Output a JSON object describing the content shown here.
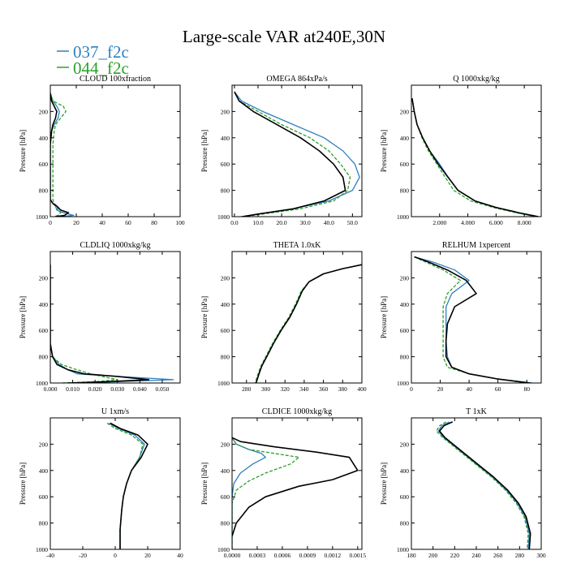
{
  "title": "Large-scale VAR at240E,30N",
  "legend": [
    {
      "label": "037_f2c",
      "color": "#2f7fc1",
      "style": "solid"
    },
    {
      "label": "044_f2c",
      "color": "#2ca02c",
      "style": "dashed"
    }
  ],
  "colors": {
    "series3": "#000000"
  },
  "chart_data": [
    {
      "type": "line",
      "title": "CLOUD  100xfraction",
      "ylabel": "Pressure [hPa]",
      "xlim": [
        0,
        100
      ],
      "ylim": [
        1000,
        0
      ],
      "xticks": [
        "0",
        "20",
        "40",
        "60",
        "80",
        "100"
      ],
      "yticks": [
        "200",
        "400",
        "600",
        "800",
        "1000"
      ],
      "series": [
        {
          "x": [
            0,
            2,
            5,
            7,
            6,
            3,
            1,
            0,
            0,
            0,
            0,
            2,
            4,
            5,
            10,
            18,
            8,
            2
          ],
          "y": [
            60,
            120,
            160,
            200,
            250,
            300,
            350,
            450,
            600,
            800,
            870,
            900,
            920,
            950,
            970,
            990,
            1000,
            1010
          ]
        },
        {
          "x": [
            0,
            2,
            10,
            12,
            8,
            4,
            3,
            2,
            2,
            2,
            2,
            3,
            5,
            6,
            8,
            6,
            3,
            2
          ],
          "y": [
            60,
            120,
            160,
            200,
            250,
            300,
            350,
            450,
            600,
            800,
            870,
            900,
            920,
            950,
            970,
            990,
            1000,
            1010
          ]
        },
        {
          "x": [
            0,
            1,
            3,
            5,
            4,
            2,
            1,
            0,
            0,
            0,
            0,
            2,
            5,
            8,
            14,
            11,
            4,
            2
          ],
          "y": [
            60,
            120,
            160,
            200,
            250,
            300,
            350,
            450,
            600,
            800,
            870,
            900,
            920,
            950,
            970,
            990,
            1000,
            1010
          ]
        }
      ]
    },
    {
      "type": "line",
      "title": "OMEGA  864xPa/s",
      "ylabel": "Pressure [hPa]",
      "xlim": [
        -1,
        54
      ],
      "ylim": [
        1000,
        0
      ],
      "xticks": [
        "0.0",
        "10.0",
        "20.0",
        "30.0",
        "40.0",
        "50.0"
      ],
      "yticks": [
        "200",
        "400",
        "600",
        "800",
        "1000"
      ],
      "series": [
        {
          "x": [
            0,
            3,
            12,
            25,
            38,
            46,
            51,
            53,
            50,
            40,
            25,
            10,
            0
          ],
          "y": [
            50,
            120,
            200,
            300,
            400,
            500,
            600,
            700,
            800,
            880,
            940,
            980,
            1010
          ]
        },
        {
          "x": [
            0,
            2,
            10,
            20,
            32,
            40,
            45,
            49,
            48,
            42,
            28,
            12,
            0
          ],
          "y": [
            50,
            120,
            200,
            300,
            400,
            500,
            600,
            700,
            800,
            880,
            940,
            980,
            1010
          ]
        },
        {
          "x": [
            0,
            2,
            8,
            18,
            28,
            36,
            42,
            46,
            47,
            38,
            25,
            10,
            0
          ],
          "y": [
            50,
            120,
            200,
            300,
            400,
            500,
            600,
            700,
            800,
            880,
            940,
            980,
            1010
          ]
        }
      ]
    },
    {
      "type": "line",
      "title": "Q  1000xkg/kg",
      "ylabel": "Pressure [hPa]",
      "xlim": [
        0,
        9.2
      ],
      "ylim": [
        1000,
        0
      ],
      "xticks": [
        "2.000",
        "4.000",
        "6.000",
        "8.000"
      ],
      "yticks": [
        "200",
        "400",
        "600",
        "800",
        "1000"
      ],
      "series": [
        {
          "x": [
            0.05,
            0.2,
            0.4,
            0.8,
            1.3,
            2.0,
            2.6,
            3.3,
            4.5,
            6.0,
            7.5,
            8.8
          ],
          "y": [
            100,
            200,
            300,
            400,
            500,
            600,
            700,
            800,
            880,
            930,
            970,
            1000
          ]
        },
        {
          "x": [
            0.05,
            0.2,
            0.4,
            0.75,
            1.2,
            1.8,
            2.4,
            3.0,
            4.2,
            5.8,
            7.4,
            8.8
          ],
          "y": [
            100,
            200,
            300,
            400,
            500,
            600,
            700,
            800,
            880,
            930,
            970,
            1000
          ]
        },
        {
          "x": [
            0.05,
            0.2,
            0.4,
            0.8,
            1.3,
            1.9,
            2.6,
            3.3,
            4.5,
            6.0,
            7.6,
            9.0
          ],
          "y": [
            100,
            200,
            300,
            400,
            500,
            600,
            700,
            800,
            880,
            930,
            970,
            1000
          ]
        }
      ]
    },
    {
      "type": "line",
      "title": "CLDLIQ  1000xkg/kg",
      "ylabel": "Pressure [hPa]",
      "xlim": [
        0,
        0.058
      ],
      "ylim": [
        1000,
        0
      ],
      "xticks": [
        "0.000",
        "0.010",
        "0.020",
        "0.030",
        "0.040",
        "0.050"
      ],
      "yticks": [
        "200",
        "400",
        "600",
        "800",
        "1000"
      ],
      "series": [
        {
          "x": [
            0,
            0,
            0,
            0.001,
            0.004,
            0.008,
            0.012,
            0.03,
            0.055,
            0.03,
            0.01,
            0.002
          ],
          "y": [
            100,
            400,
            700,
            800,
            860,
            900,
            930,
            950,
            975,
            990,
            1000,
            1010
          ]
        },
        {
          "x": [
            0,
            0,
            0,
            0.001,
            0.005,
            0.012,
            0.018,
            0.023,
            0.03,
            0.02,
            0.005,
            0.001
          ],
          "y": [
            100,
            400,
            700,
            800,
            860,
            900,
            930,
            950,
            975,
            990,
            1000,
            1010
          ]
        },
        {
          "x": [
            0,
            0,
            0,
            0.001,
            0.003,
            0.008,
            0.015,
            0.03,
            0.044,
            0.025,
            0.008,
            0.002
          ],
          "y": [
            100,
            400,
            700,
            800,
            860,
            900,
            930,
            950,
            975,
            990,
            1000,
            1010
          ]
        }
      ]
    },
    {
      "type": "line",
      "title": "THETA  1.0xK",
      "ylabel": "Pressure [hPa]",
      "xlim": [
        265,
        400
      ],
      "ylim": [
        1000,
        0
      ],
      "xticks": [
        "280",
        "300",
        "320",
        "340",
        "360",
        "380",
        "400"
      ],
      "yticks": [
        "200",
        "400",
        "600",
        "800",
        "1000"
      ],
      "series": [
        {
          "x": [
            400,
            380,
            360,
            345,
            338,
            332,
            325,
            316,
            308,
            301,
            296,
            293,
            290
          ],
          "y": [
            100,
            130,
            170,
            230,
            300,
            400,
            500,
            600,
            700,
            800,
            870,
            930,
            1000
          ]
        },
        {
          "x": [
            400,
            380,
            360,
            345,
            337,
            331,
            324,
            315,
            307,
            300,
            295,
            292,
            289
          ],
          "y": [
            100,
            130,
            170,
            230,
            300,
            400,
            500,
            600,
            700,
            800,
            870,
            930,
            1000
          ]
        },
        {
          "x": [
            400,
            380,
            360,
            345,
            338,
            332,
            325,
            316,
            308,
            301,
            296,
            293,
            290
          ],
          "y": [
            100,
            130,
            170,
            230,
            300,
            400,
            500,
            600,
            700,
            800,
            870,
            930,
            1000
          ]
        }
      ]
    },
    {
      "type": "line",
      "title": "RELHUM  1xpercent",
      "ylabel": "Pressure [hPa]",
      "xlim": [
        0,
        90
      ],
      "ylim": [
        1000,
        0
      ],
      "xticks": [
        "0",
        "20",
        "40",
        "60",
        "80"
      ],
      "yticks": [
        "200",
        "400",
        "600",
        "800",
        "1000"
      ],
      "series": [
        {
          "x": [
            2,
            15,
            30,
            40,
            28,
            24,
            24,
            24,
            25,
            28,
            40,
            60,
            84
          ],
          "y": [
            40,
            80,
            140,
            220,
            320,
            420,
            550,
            680,
            800,
            880,
            930,
            970,
            1000
          ]
        },
        {
          "x": [
            2,
            10,
            22,
            34,
            25,
            22,
            22,
            22,
            22,
            25,
            40,
            60,
            80
          ],
          "y": [
            40,
            80,
            140,
            220,
            320,
            420,
            550,
            680,
            800,
            880,
            930,
            970,
            1000
          ]
        },
        {
          "x": [
            2,
            12,
            25,
            38,
            45,
            30,
            25,
            24,
            24,
            28,
            40,
            60,
            82
          ],
          "y": [
            40,
            80,
            140,
            220,
            320,
            420,
            550,
            680,
            800,
            880,
            930,
            970,
            1000
          ]
        }
      ]
    },
    {
      "type": "line",
      "title": "U  1xm/s",
      "ylabel": "Pressure [hPa]",
      "xlim": [
        -40,
        40
      ],
      "ylim": [
        1000,
        0
      ],
      "xticks": [
        "-40",
        "-20",
        "0",
        "20",
        "40"
      ],
      "yticks": [
        "200",
        "400",
        "600",
        "800",
        "1000"
      ],
      "series": [
        {
          "x": [
            -4,
            2,
            12,
            18,
            15,
            10,
            7,
            5,
            4,
            3,
            3
          ],
          "y": [
            40,
            80,
            130,
            200,
            300,
            400,
            500,
            600,
            700,
            850,
            1000
          ]
        },
        {
          "x": [
            -5,
            0,
            10,
            17,
            15,
            10,
            7,
            5,
            4,
            3,
            3
          ],
          "y": [
            40,
            80,
            130,
            200,
            300,
            400,
            500,
            600,
            700,
            850,
            1000
          ]
        },
        {
          "x": [
            -3,
            3,
            14,
            20,
            16,
            10,
            7,
            5,
            4,
            3,
            3
          ],
          "y": [
            40,
            80,
            130,
            200,
            300,
            400,
            500,
            600,
            700,
            850,
            1000
          ]
        }
      ]
    },
    {
      "type": "line",
      "title": "CLDICE  1000xkg/kg",
      "ylabel": "Pressure [hPa]",
      "xlim": [
        0,
        0.00155
      ],
      "ylim": [
        1000,
        0
      ],
      "xticks": [
        "0.0000",
        "0.0003",
        "0.0006",
        "0.0009",
        "0.0012",
        "0.0015"
      ],
      "yticks": [
        "200",
        "400",
        "600",
        "800",
        "1000"
      ],
      "series": [
        {
          "x": [
            0,
            5e-05,
            0.0002,
            0.00035,
            0.0004,
            0.00025,
            0.0001,
            2e-05,
            0,
            0
          ],
          "y": [
            150,
            200,
            240,
            270,
            300,
            350,
            420,
            500,
            600,
            1000
          ]
        },
        {
          "x": [
            0,
            5e-05,
            0.0002,
            0.0005,
            0.0008,
            0.0007,
            0.0004,
            0.0002,
            5e-05,
            0,
            0
          ],
          "y": [
            150,
            200,
            240,
            270,
            300,
            350,
            420,
            480,
            550,
            650,
            1000
          ]
        },
        {
          "x": [
            0,
            0.0001,
            0.0005,
            0.001,
            0.0014,
            0.0015,
            0.0012,
            0.0008,
            0.0004,
            0.0002,
            5e-05,
            0
          ],
          "y": [
            150,
            180,
            220,
            260,
            300,
            400,
            470,
            520,
            600,
            680,
            800,
            900
          ]
        }
      ]
    },
    {
      "type": "line",
      "title": "T  1xK",
      "ylabel": "Pressure [hPa]",
      "xlim": [
        180,
        300
      ],
      "ylim": [
        1000,
        0
      ],
      "xticks": [
        "180",
        "200",
        "220",
        "240",
        "260",
        "280",
        "300"
      ],
      "yticks": [
        "200",
        "400",
        "600",
        "800",
        "1000"
      ],
      "series": [
        {
          "x": [
            215,
            208,
            205,
            210,
            225,
            240,
            255,
            268,
            278,
            285,
            289,
            288
          ],
          "y": [
            30,
            60,
            100,
            150,
            250,
            350,
            450,
            550,
            650,
            750,
            880,
            1000
          ]
        },
        {
          "x": [
            212,
            206,
            203,
            209,
            224,
            239,
            254,
            267,
            277,
            284,
            288,
            287
          ],
          "y": [
            30,
            60,
            100,
            150,
            250,
            350,
            450,
            550,
            650,
            750,
            880,
            1000
          ]
        },
        {
          "x": [
            218,
            210,
            206,
            211,
            226,
            241,
            256,
            269,
            279,
            286,
            290,
            289
          ],
          "y": [
            30,
            60,
            100,
            150,
            250,
            350,
            450,
            550,
            650,
            750,
            880,
            1000
          ]
        }
      ]
    }
  ]
}
